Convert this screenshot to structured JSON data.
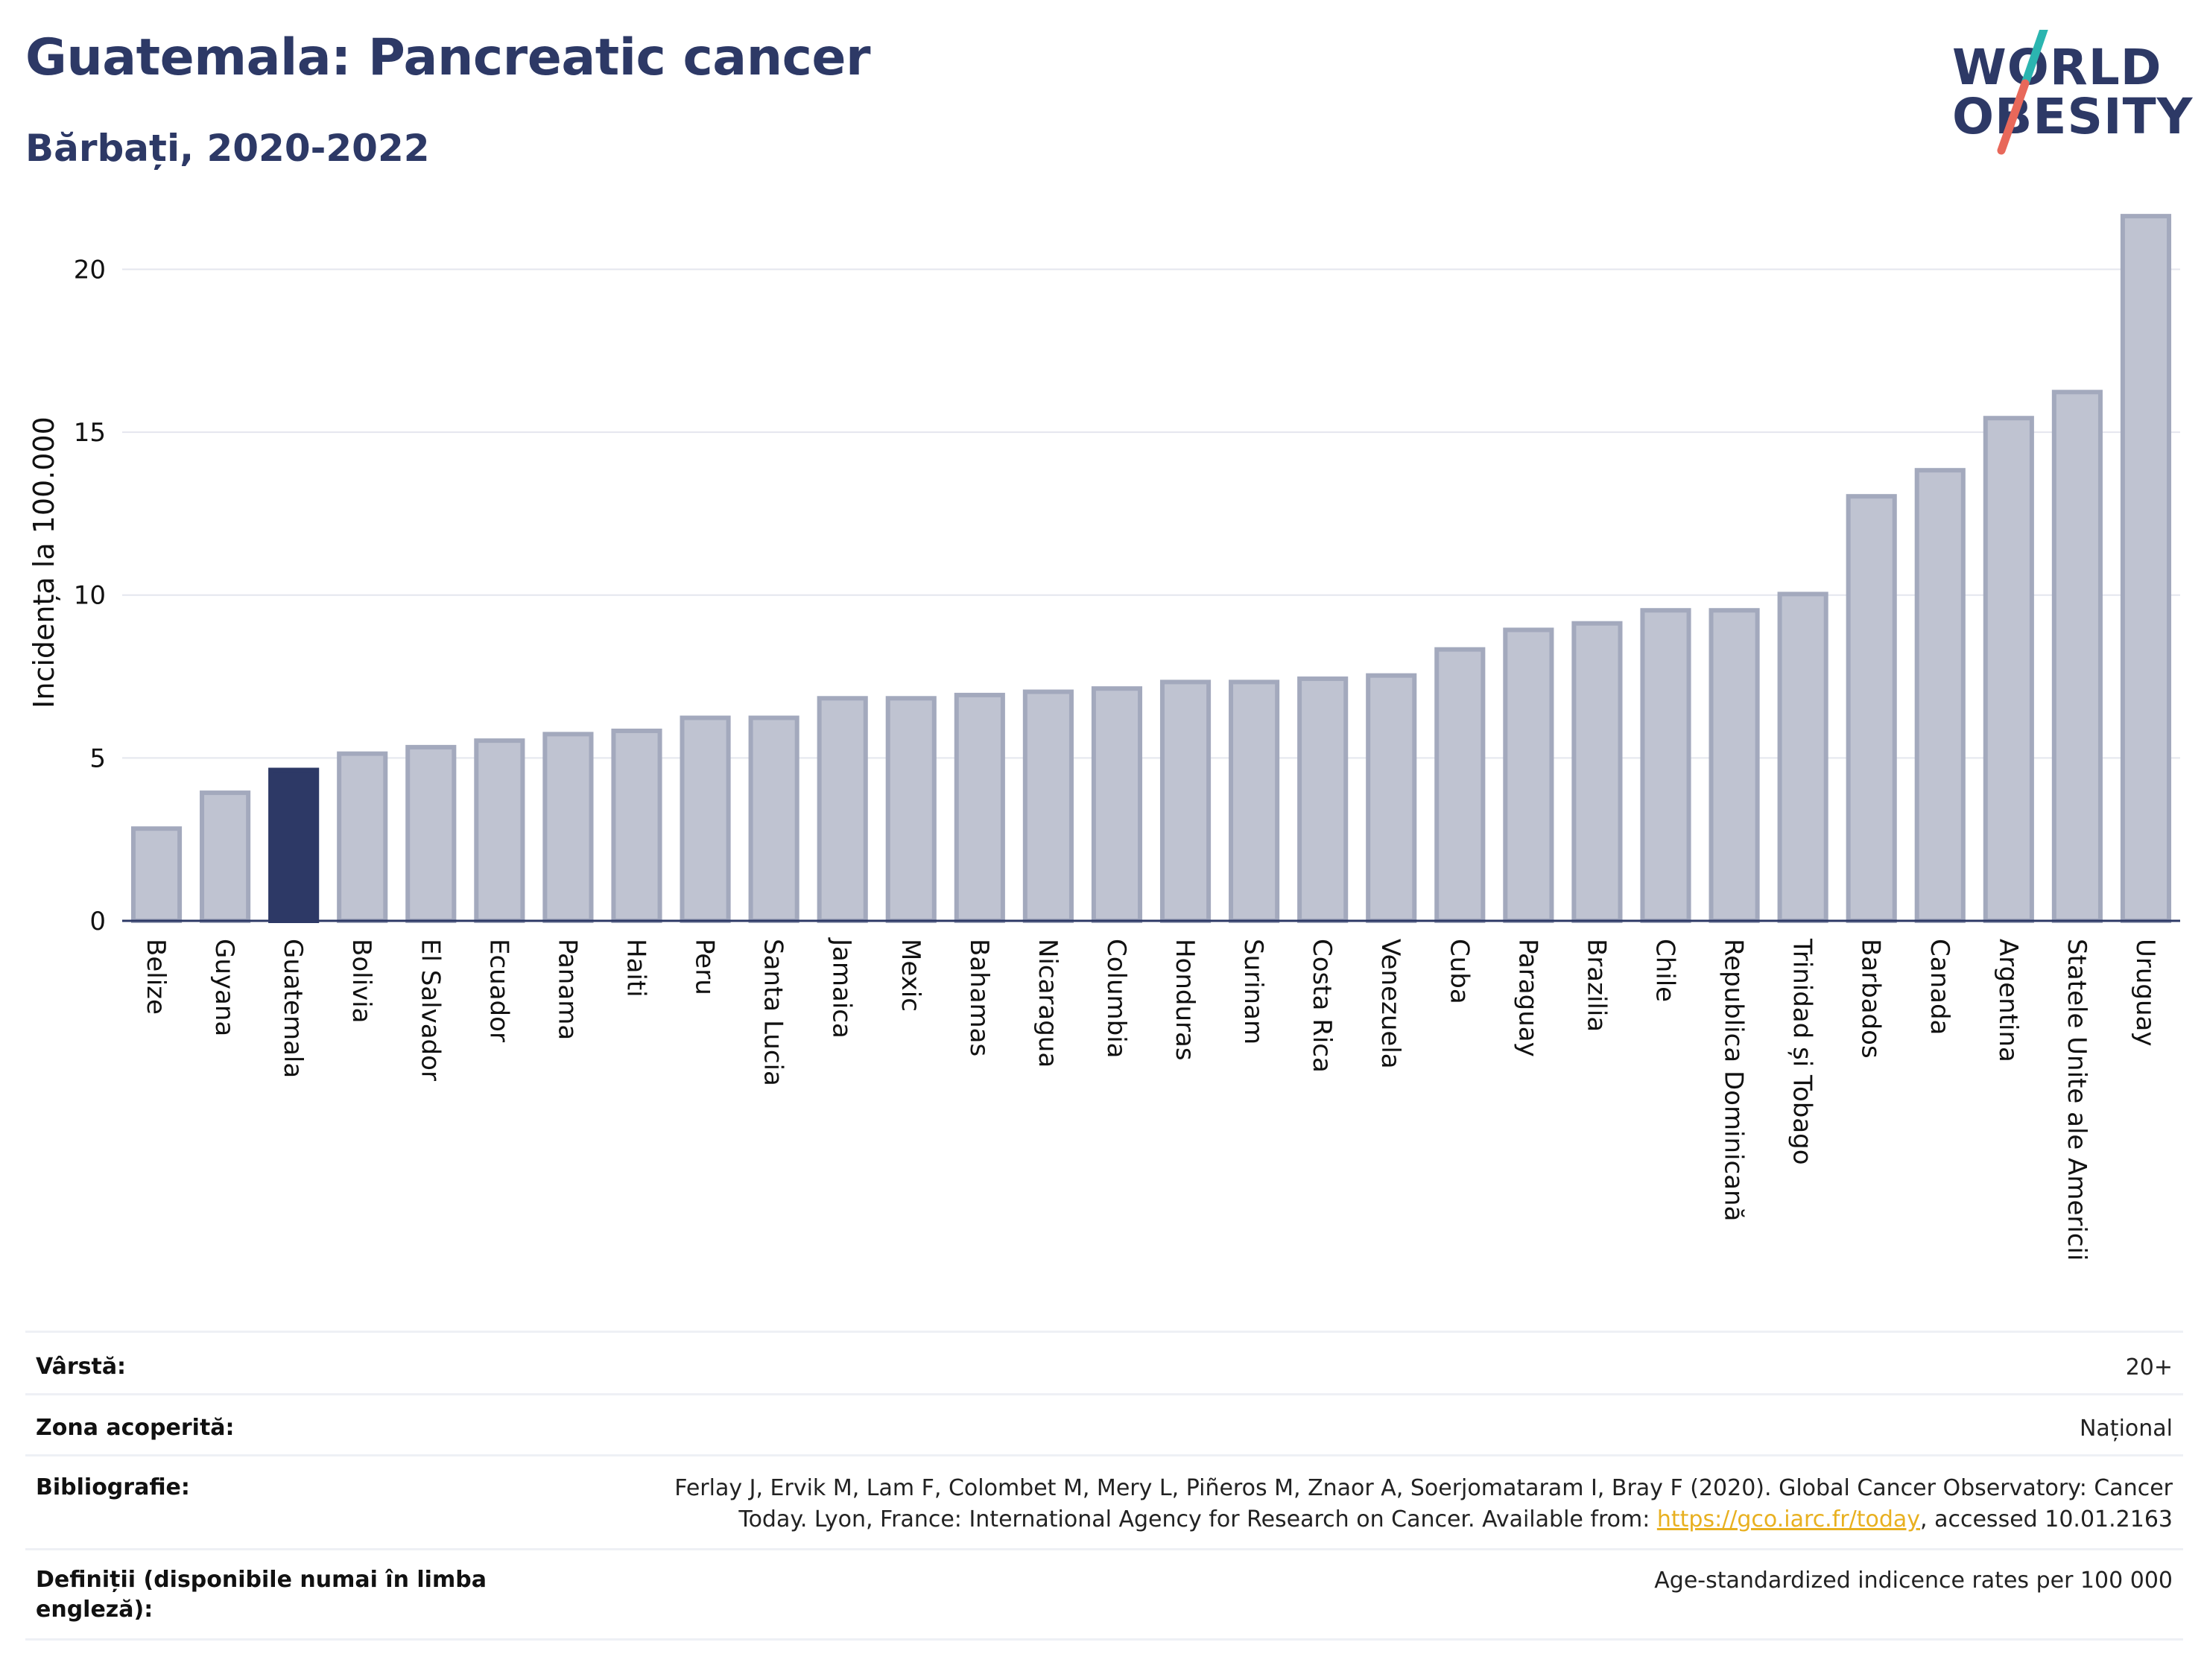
{
  "header": {
    "title": "Guatemala: Pancreatic cancer",
    "subtitle": "Bărbați, 2020-2022"
  },
  "logo": {
    "line1": "WORLD",
    "line2": "OBESITY",
    "colors": {
      "text": "#2d3966",
      "slash_top": "#2bb5b0",
      "slash_bottom": "#e8685a"
    }
  },
  "chart_data": {
    "type": "bar",
    "ylabel": "Incidența la 100.000",
    "xlabel": "",
    "ylim": [
      0,
      22
    ],
    "yticks": [
      0,
      5,
      10,
      15,
      20
    ],
    "grid": true,
    "highlight": "Guatemala",
    "colors": {
      "bar": "#bfc3d1",
      "bar_edge": "#a3a9bd",
      "highlight": "#2d3966",
      "grid": "#e4e6ee",
      "axis": "#2d3966"
    },
    "categories": [
      "Belize",
      "Guyana",
      "Guatemala",
      "Bolivia",
      "El Salvador",
      "Ecuador",
      "Panama",
      "Haiti",
      "Peru",
      "Santa Lucia",
      "Jamaica",
      "Mexic",
      "Bahamas",
      "Nicaragua",
      "Columbia",
      "Honduras",
      "Surinam",
      "Costa Rica",
      "Venezuela",
      "Cuba",
      "Paraguay",
      "Brazilia",
      "Chile",
      "Republica Dominicană",
      "Trinidad și Tobago",
      "Barbados",
      "Canada",
      "Argentina",
      "Statele Unite ale Americii",
      "Uruguay"
    ],
    "values": [
      2.9,
      4.0,
      4.7,
      5.2,
      5.4,
      5.6,
      5.8,
      5.9,
      6.3,
      6.3,
      6.9,
      6.9,
      7.0,
      7.1,
      7.2,
      7.4,
      7.4,
      7.5,
      7.6,
      8.4,
      9.0,
      9.2,
      9.6,
      9.6,
      10.1,
      13.1,
      13.9,
      15.5,
      16.3,
      21.7
    ]
  },
  "info": {
    "age_label": "Vârstă:",
    "age_value": "20+",
    "zone_label": "Zona acoperită:",
    "zone_value": "Național",
    "bib_label": "Bibliografie:",
    "bib_line1": "Ferlay J, Ervik M, Lam F, Colombet M, Mery L, Piñeros M, Znaor A, Soerjomataram I, Bray F (2020). Global Cancer Observatory: Cancer",
    "bib_line2_pre": "Today. Lyon, France: International Agency for Research on Cancer. Available from: ",
    "bib_link": "https://gco.iarc.fr/today",
    "bib_line2_post": ", accessed 10.01.2163",
    "def_label": "Definiții (disponibile numai în limba engleză):",
    "def_value": "Age-standardized indicence rates per 100 000"
  }
}
